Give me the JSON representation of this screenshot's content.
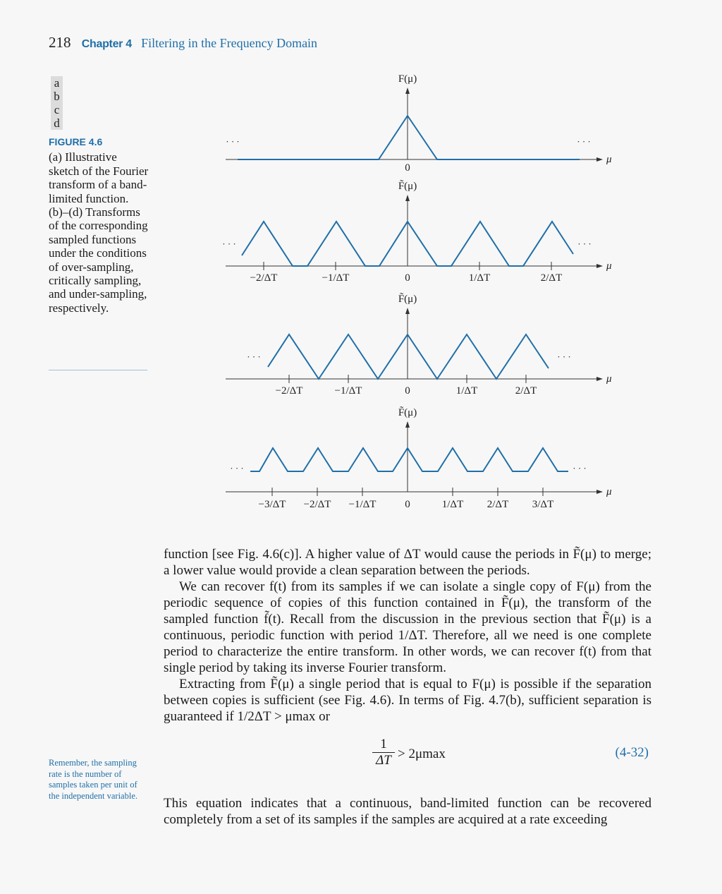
{
  "header": {
    "page_number": "218",
    "chapter_label": "Chapter 4",
    "chapter_title": "Filtering in the Frequency Domain"
  },
  "figure": {
    "panel_letters": [
      "a",
      "b",
      "c",
      "d"
    ],
    "label": "FIGURE 4.6",
    "caption": "(a) Illustrative sketch of the Fourier transform of a band-limited function. (b)–(d) Transforms of the corresponding sampled functions under the conditions of over-sampling, critically sampling, and under-sampling, respectively.",
    "panels": [
      {
        "ylabel": "F(μ)",
        "xlabel": "μ",
        "ellipsis": "· · ·",
        "ticks": [
          "0"
        ]
      },
      {
        "ylabel": "F̃(μ)",
        "xlabel": "μ",
        "ellipsis": "· · ·",
        "ticks": [
          "−2/ΔT",
          "−1/ΔT",
          "0",
          "1/ΔT",
          "2/ΔT"
        ]
      },
      {
        "ylabel": "F̃(μ)",
        "xlabel": "μ",
        "ellipsis": "· · ·",
        "ticks": [
          "−2/ΔT",
          "−1/ΔT",
          "0",
          "1/ΔT",
          "2/ΔT"
        ]
      },
      {
        "ylabel": "F̃(μ)",
        "xlabel": "μ",
        "ellipsis": "· · ·",
        "ticks": [
          "−3/ΔT",
          "−2/ΔT",
          "−1/ΔT",
          "0",
          "1/ΔT",
          "2/ΔT",
          "3/ΔT"
        ]
      }
    ]
  },
  "text": {
    "para1": "function [see Fig. 4.6(c)]. A higher value of ΔT would cause the periods in F̃(μ) to merge; a lower value would provide a clean separation between the periods.",
    "para2": "We can recover f(t) from its samples if we can isolate a single copy of F(μ) from the periodic sequence of copies of this function contained in F̃(μ), the transform of the sampled function f̃(t). Recall from the discussion in the previous section that F̃(μ) is a continuous, periodic function with period 1/ΔT. Therefore, all we need is one complete period to characterize the entire transform. In other words, we can recover f(t) from that single period by taking its inverse Fourier transform.",
    "para3": "Extracting from F̃(μ) a single period that is equal to F(μ) is possible if the separation between copies is sufficient (see Fig. 4.6). In terms of Fig. 4.7(b), sufficient separation is guaranteed if 1/2ΔT > μmax or",
    "equation": {
      "numerator": "1",
      "denominator": "ΔT",
      "rhs": "> 2μmax",
      "number": "(4-32)"
    },
    "para4": "This equation indicates that a continuous, band-limited function can be recovered completely from a set of its samples if the samples are acquired at a rate exceeding",
    "margin_note": "Remember, the sampling rate is the number of samples taken per unit of the independent variable."
  },
  "colors": {
    "accent": "#1f6fa8",
    "curve": "#1f6fa8"
  }
}
